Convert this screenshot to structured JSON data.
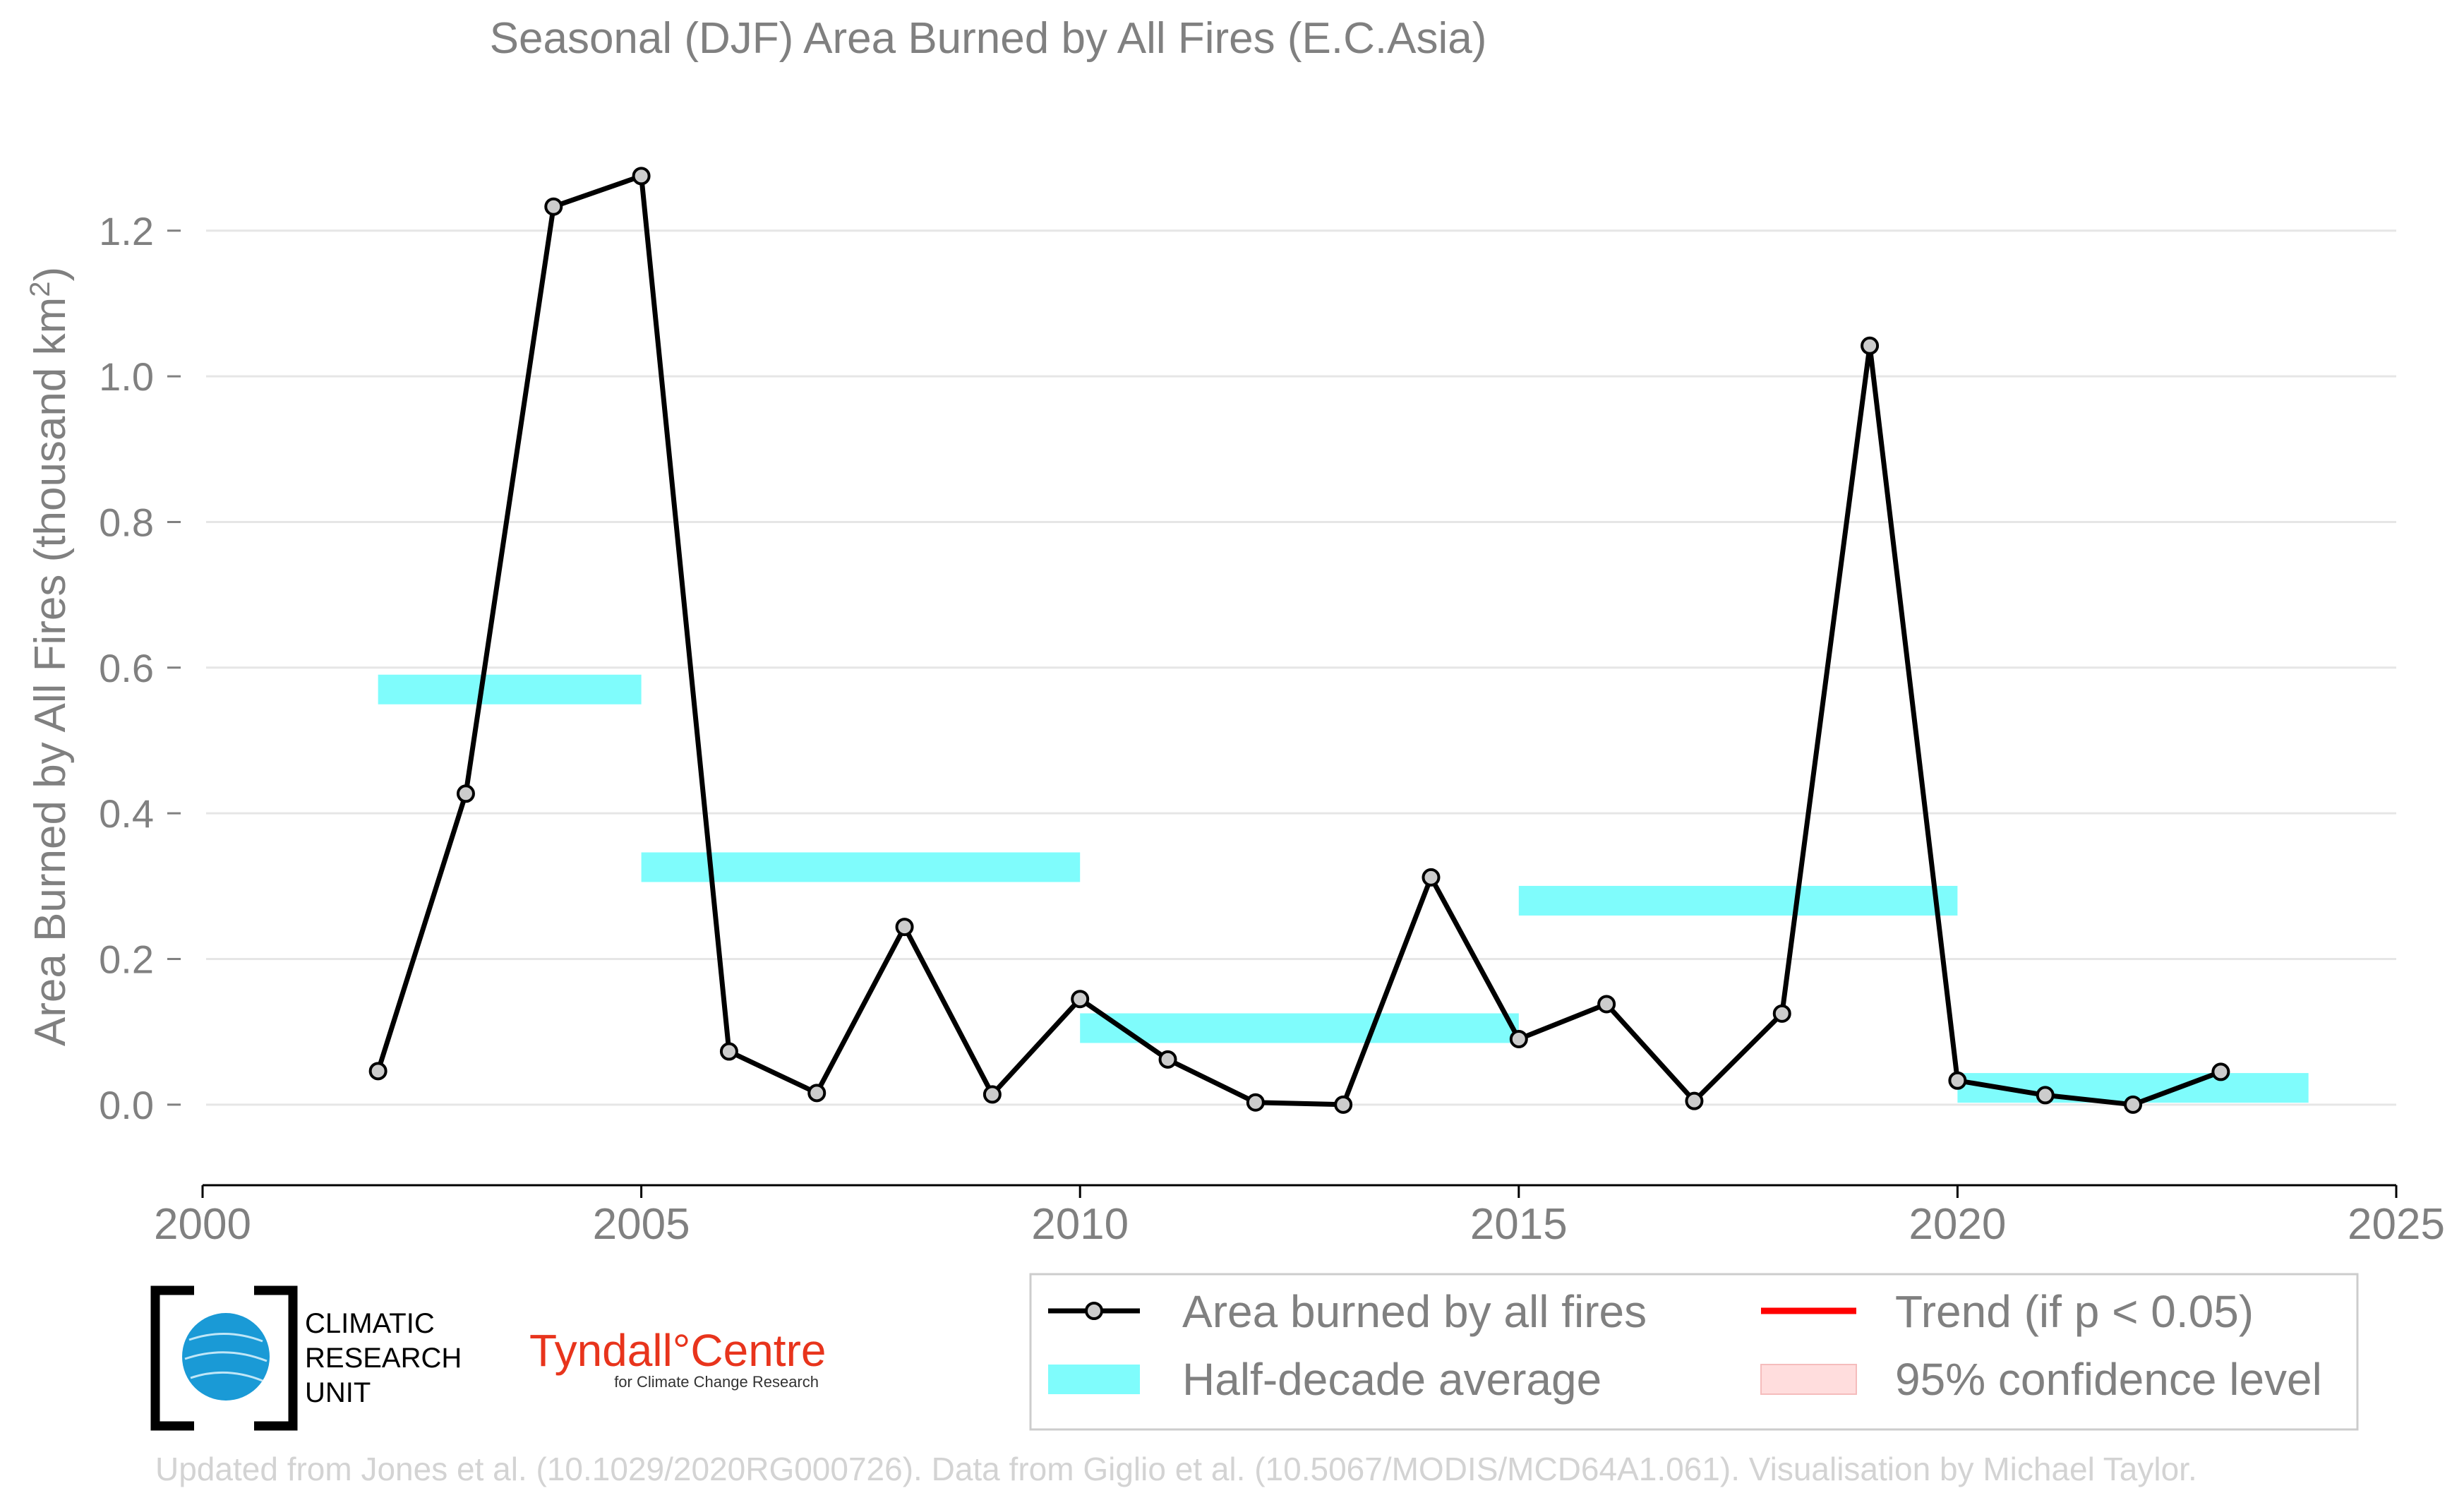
{
  "chart_data": {
    "type": "line",
    "title": "Seasonal (DJF) Area Burned by All Fires (E.C.Asia)",
    "ylabel_main": "Area Burned by All Fires (thousand km",
    "ylabel_sup": "2",
    "ylabel_close": ")",
    "xlim": [
      2000,
      2025
    ],
    "ylim": [
      -0.1,
      1.35
    ],
    "xticks": [
      2000,
      2005,
      2010,
      2015,
      2020,
      2025
    ],
    "yticks": [
      0.0,
      0.2,
      0.4,
      0.6,
      0.8,
      1.0,
      1.2
    ],
    "ytick_labels": [
      "0.0",
      "0.2",
      "0.4",
      "0.6",
      "0.8",
      "1.0",
      "1.2"
    ],
    "grid": true,
    "series": [
      {
        "name": "Area burned by all fires",
        "color": "#000000",
        "marker_fill": "#cccccc",
        "x": [
          2002,
          2003,
          2004,
          2005,
          2006,
          2007,
          2008,
          2009,
          2010,
          2011,
          2012,
          2013,
          2014,
          2015,
          2016,
          2017,
          2018,
          2019,
          2020,
          2021,
          2022,
          2023
        ],
        "y": [
          0.046,
          0.427,
          1.233,
          1.275,
          0.073,
          0.016,
          0.244,
          0.014,
          0.145,
          0.062,
          0.003,
          0.0,
          0.312,
          0.09,
          0.138,
          0.005,
          0.125,
          1.042,
          0.033,
          0.013,
          0.0,
          0.045
        ]
      }
    ],
    "half_decade_average": {
      "name": "Half-decade average",
      "color": "#7ffcfc",
      "segments": [
        {
          "x0": 2002,
          "x1": 2005,
          "y": 0.57
        },
        {
          "x0": 2005,
          "x1": 2010,
          "y": 0.326
        },
        {
          "x0": 2010,
          "x1": 2015,
          "y": 0.105
        },
        {
          "x0": 2015,
          "x1": 2020,
          "y": 0.28
        },
        {
          "x0": 2020,
          "x1": 2024,
          "y": 0.023
        }
      ]
    },
    "legend": [
      {
        "label": "Area burned by all fires",
        "kind": "line-marker",
        "color": "#000000"
      },
      {
        "label": "Trend (if p < 0.05)",
        "kind": "line",
        "color": "#ff0000"
      },
      {
        "label": "Half-decade average",
        "kind": "band",
        "color": "#7ffcfc"
      },
      {
        "label": "95% confidence level",
        "kind": "fill",
        "color": "#ffdddd"
      }
    ],
    "legend_position": "bottom-right"
  },
  "logos": {
    "cru_lines": [
      "CLIMATIC",
      "RESEARCH",
      "UNIT"
    ],
    "tyndall_main": "Tyndall°Centre",
    "tyndall_sub": "for Climate Change Research"
  },
  "credit": "Updated from Jones et al. (10.1029/2020RG000726). Data from Giglio et al. (10.5067/MODIS/MCD64A1.061). Visualisation by Michael Taylor."
}
